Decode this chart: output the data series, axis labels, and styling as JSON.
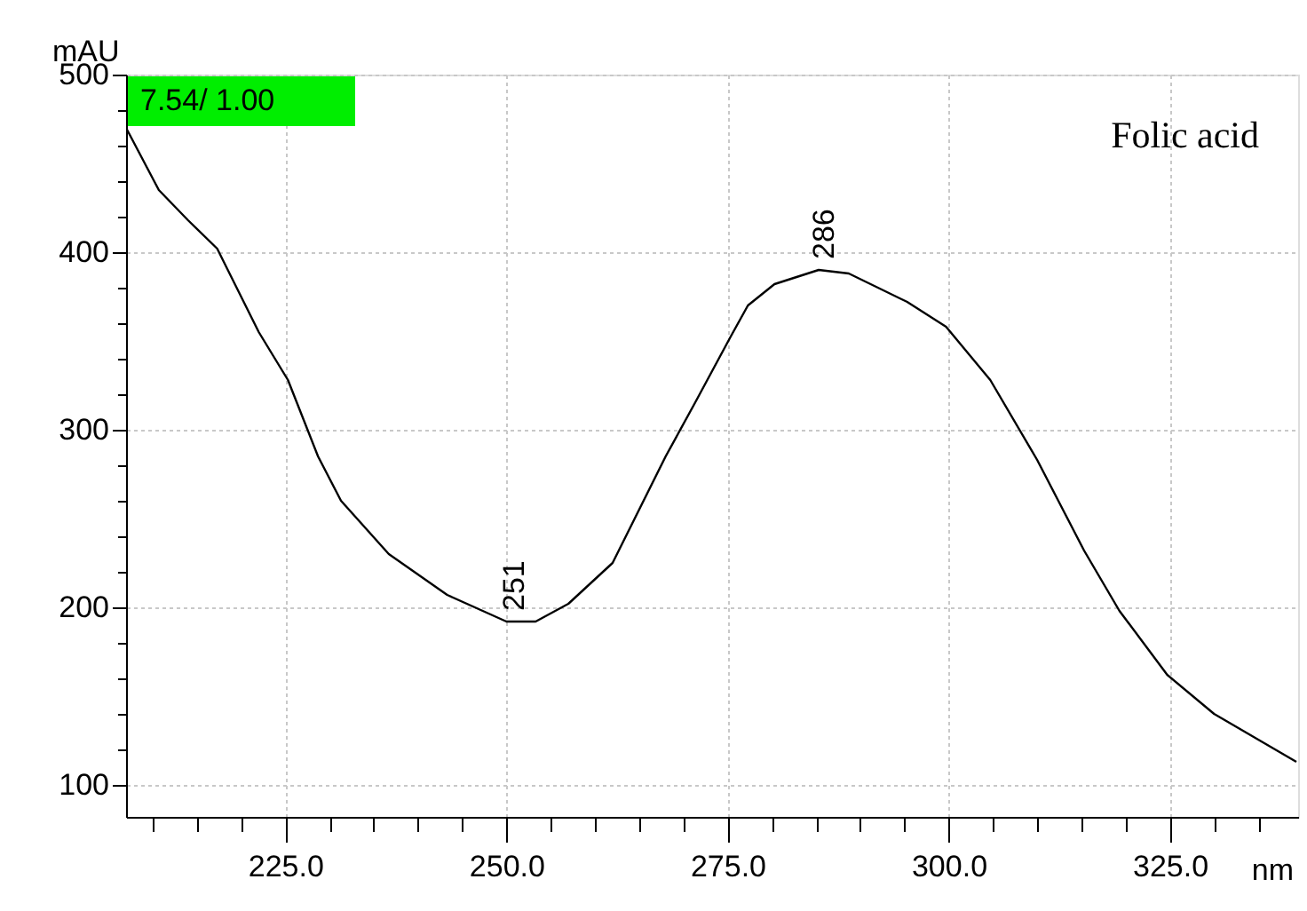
{
  "chart_data": {
    "type": "line",
    "xlabel": "nm",
    "ylabel": "mAU",
    "x": [
      207,
      210.7,
      214,
      217.3,
      222,
      225.3,
      228.7,
      231.3,
      236.7,
      243.3,
      250,
      253.3,
      257,
      262,
      268,
      271.3,
      275.3,
      277.3,
      280.3,
      285.3,
      288.7,
      295.3,
      299.7,
      304.7,
      310,
      315.3,
      319.3,
      324.7,
      330,
      339.3
    ],
    "series": [
      {
        "color": "#000000",
        "values": [
          470,
          435,
          418,
          402,
          355,
          328,
          285,
          260,
          230,
          207,
          192,
          192,
          202,
          225,
          285,
          315,
          352,
          370,
          382,
          390,
          388,
          372,
          358,
          328,
          283,
          232,
          198,
          162,
          140,
          113
        ]
      }
    ],
    "xlim": [
      207,
      339.5
    ],
    "ylim": [
      82,
      500
    ],
    "xticks": [
      {
        "value": 210,
        "label": null
      },
      {
        "value": 215,
        "label": null
      },
      {
        "value": 220,
        "label": null
      },
      {
        "value": 225,
        "label": "225.0"
      },
      {
        "value": 230,
        "label": null
      },
      {
        "value": 235,
        "label": null
      },
      {
        "value": 240,
        "label": null
      },
      {
        "value": 245,
        "label": null
      },
      {
        "value": 250,
        "label": "250.0"
      },
      {
        "value": 255,
        "label": null
      },
      {
        "value": 260,
        "label": null
      },
      {
        "value": 265,
        "label": null
      },
      {
        "value": 270,
        "label": null
      },
      {
        "value": 275,
        "label": "275.0"
      },
      {
        "value": 280,
        "label": null
      },
      {
        "value": 285,
        "label": null
      },
      {
        "value": 290,
        "label": null
      },
      {
        "value": 295,
        "label": null
      },
      {
        "value": 300,
        "label": "300.0"
      },
      {
        "value": 305,
        "label": null
      },
      {
        "value": 310,
        "label": null
      },
      {
        "value": 315,
        "label": null
      },
      {
        "value": 320,
        "label": null
      },
      {
        "value": 325,
        "label": "325.0"
      },
      {
        "value": 330,
        "label": null
      },
      {
        "value": 335,
        "label": null
      }
    ],
    "yticks": [
      100,
      {
        "value": 120,
        "label": null
      },
      {
        "value": 140,
        "label": null
      },
      {
        "value": 160,
        "label": null
      },
      {
        "value": 180,
        "label": null
      },
      200,
      {
        "value": 220,
        "label": null
      },
      {
        "value": 240,
        "label": null
      },
      {
        "value": 260,
        "label": null
      },
      {
        "value": 280,
        "label": null
      },
      300,
      {
        "value": 320,
        "label": null
      },
      {
        "value": 340,
        "label": null
      },
      {
        "value": 360,
        "label": null
      },
      {
        "value": 380,
        "label": null
      },
      400,
      {
        "value": 420,
        "label": null
      },
      {
        "value": 440,
        "label": null
      },
      {
        "value": 460,
        "label": null
      },
      {
        "value": 480,
        "label": null
      },
      500
    ],
    "grid": true,
    "annotations": [
      "7.54/ 1.00",
      {
        "text": "251",
        "x": 251,
        "y": 192
      },
      {
        "text": "286",
        "x": 286,
        "y": 390
      },
      "Folic acid"
    ]
  }
}
